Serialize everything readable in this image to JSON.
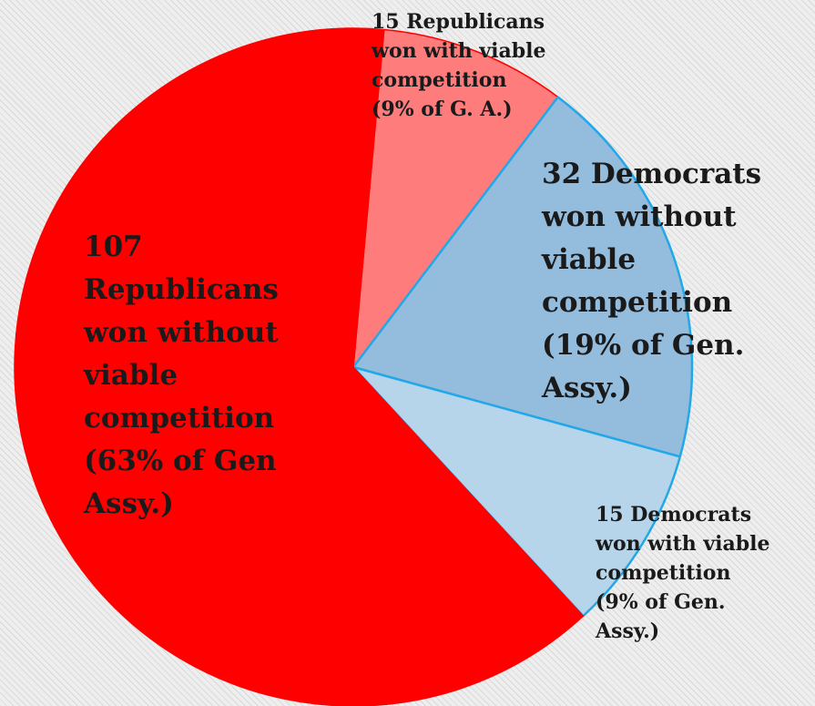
{
  "chart_data": {
    "type": "pie",
    "title": "",
    "slices": [
      {
        "label": "107 Republicans won without viable competition (63% of Gen Assy.)",
        "value": 107,
        "percent": 63,
        "color": "#ff0000"
      },
      {
        "label": "15 Republicans won with viable competition (9% of G. A.)",
        "value": 15,
        "percent": 9,
        "color": "#ff7c7c"
      },
      {
        "label": "32 Democrats won without viable competition (19% of Gen. Assy.)",
        "value": 32,
        "percent": 19,
        "color": "#94bcdd"
      },
      {
        "label": "15 Democrats won with viable competition (9% of Gen. Assy.)",
        "value": 15,
        "percent": 9,
        "color": "#b6d4ea"
      }
    ],
    "slice_borders": {
      "republican": "#ff0000",
      "democrat": "#22a8e8"
    },
    "legend": "none",
    "labels_on_chart": true
  },
  "labels": [
    "107\nRepublicans\nwon without\nviable\ncompetition\n(63% of Gen\nAssy.)",
    "15 Republicans\nwon with viable\ncompetition\n(9% of G. A.)",
    "32 Democrats\nwon without\nviable\ncompetition\n(19% of Gen.\nAssy.)",
    "15 Democrats\nwon with viable\ncompetition\n(9% of Gen.\nAssy.)"
  ]
}
